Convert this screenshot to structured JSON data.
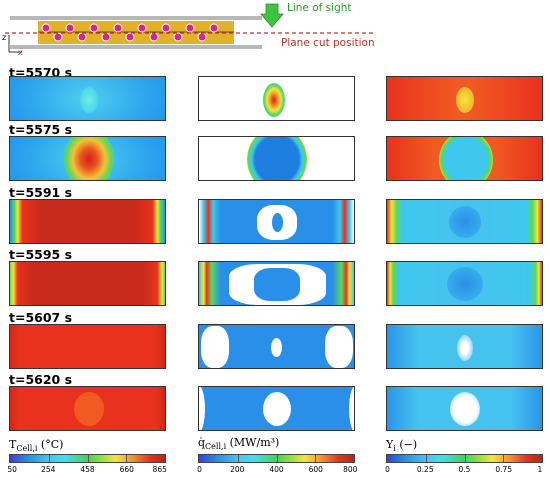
{
  "schematic": {
    "line_of_sight": "Line of sight",
    "plane_cut": "Plane cut position",
    "axis_z": "z",
    "axis_x": "x"
  },
  "rows": [
    {
      "time": "t=5570 s"
    },
    {
      "time": "t=5575 s"
    },
    {
      "time": "t=5591 s"
    },
    {
      "time": "t=5595 s"
    },
    {
      "time": "t=5607 s"
    },
    {
      "time": "t=5620 s"
    }
  ],
  "colorbars": [
    {
      "title_main": "T",
      "title_sub": "Cell,i",
      "title_unit": " (°C)",
      "ticks": [
        "50",
        "254",
        "458",
        "660",
        "865"
      ]
    },
    {
      "title_main": "q̇",
      "title_sub": "Cell,i",
      "title_unit": " (MW/m³)",
      "ticks": [
        "0",
        "200",
        "400",
        "600",
        "800"
      ]
    },
    {
      "title_main": "Y",
      "title_sub": "i",
      "title_unit": " (−)",
      "ticks": [
        "0",
        "0.25",
        "0.5",
        "0.75",
        "1"
      ]
    }
  ],
  "colors": {
    "blue": "#1f8fe8",
    "light_blue": "#46c8ee",
    "cyan": "#3fe0ea",
    "green": "#3dd55a",
    "yellow": "#f6e73a",
    "orange": "#f58c25",
    "red": "#e8321d",
    "dark_red": "#b8261b",
    "schematic_yellow": "#e2b12a",
    "schematic_magenta": "#d9248f",
    "arrow_green": "#3fc43f",
    "dash_red": "#b53527"
  }
}
